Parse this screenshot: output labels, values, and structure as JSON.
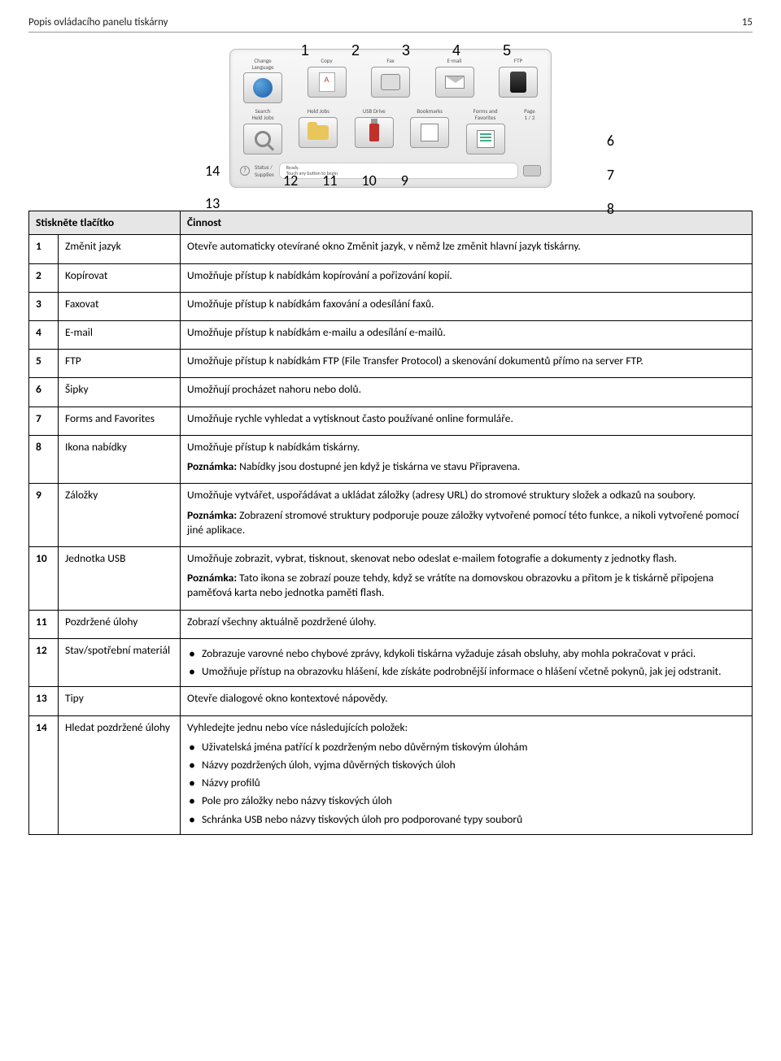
{
  "header": {
    "title": "Popis ovládacího panelu tiskárny",
    "page": "15"
  },
  "callouts": {
    "top": [
      "1",
      "2",
      "3",
      "4",
      "5"
    ],
    "right": [
      "6",
      "7",
      "8"
    ],
    "left": [
      "14",
      "13"
    ],
    "bottom": [
      "12",
      "11",
      "10",
      "9"
    ]
  },
  "panel": {
    "row1": [
      {
        "label": "Change\nLanguage"
      },
      {
        "label": "Copy"
      },
      {
        "label": "Fax"
      },
      {
        "label": "E-mail"
      },
      {
        "label": "FTP"
      }
    ],
    "row2": [
      {
        "label": "Search\nHeld Jobs"
      },
      {
        "label": "Held Jobs"
      },
      {
        "label": "USB Drive"
      },
      {
        "label": "Bookmarks"
      },
      {
        "label": "Forms and\nFavorites"
      }
    ],
    "page_indicator": "Page\n1 / 2",
    "status_label": "Status /\nSupplies",
    "status_msg": "Ready.\nTouch any button to begin"
  },
  "table": {
    "header": [
      "Stiskněte tlačítko",
      "Činnost"
    ],
    "rows": [
      {
        "n": "1",
        "name": "Změnit jazyk",
        "desc": [
          {
            "t": "text",
            "v": "Otevře automaticky otevírané okno Změnit jazyk, v němž lze změnit hlavní jazyk tiskárny."
          }
        ]
      },
      {
        "n": "2",
        "name": "Kopírovat",
        "desc": [
          {
            "t": "text",
            "v": "Umožňuje přístup k nabídkám kopírování a pořizování kopií."
          }
        ]
      },
      {
        "n": "3",
        "name": "Faxovat",
        "desc": [
          {
            "t": "text",
            "v": "Umožňuje přístup k nabídkám faxování a odesílání faxů."
          }
        ]
      },
      {
        "n": "4",
        "name": "E-mail",
        "desc": [
          {
            "t": "text",
            "v": "Umožňuje přístup k nabídkám e-mailu a odesílání e-mailů."
          }
        ]
      },
      {
        "n": "5",
        "name": "FTP",
        "desc": [
          {
            "t": "text",
            "v": "Umožňuje přístup k nabídkám FTP (File Transfer Protocol) a skenování dokumentů přímo na server FTP."
          }
        ]
      },
      {
        "n": "6",
        "name": "Šipky",
        "desc": [
          {
            "t": "text",
            "v": "Umožňují procházet nahoru nebo dolů."
          }
        ]
      },
      {
        "n": "7",
        "name": "Forms and Favorites",
        "desc": [
          {
            "t": "text",
            "v": "Umožňuje rychle vyhledat a vytisknout často používané online formuláře."
          }
        ]
      },
      {
        "n": "8",
        "name": "Ikona nabídky",
        "desc": [
          {
            "t": "text",
            "v": "Umožňuje přístup k nabídkám tiskárny."
          },
          {
            "t": "note",
            "b": "Poznámka:",
            "v": " Nabídky jsou dostupné jen když je tiskárna ve stavu Připravena."
          }
        ]
      },
      {
        "n": "9",
        "name": "Záložky",
        "desc": [
          {
            "t": "text",
            "v": "Umožňuje vytvářet, uspořádávat a ukládat záložky (adresy URL) do stromové struktury složek a odkazů na soubory."
          },
          {
            "t": "note",
            "b": "Poznámka:",
            "v": " Zobrazení stromové struktury podporuje pouze záložky vytvořené pomocí této funkce, a nikoli vytvořené pomocí jiné aplikace."
          }
        ]
      },
      {
        "n": "10",
        "name": "Jednotka USB",
        "desc": [
          {
            "t": "text",
            "v": "Umožňuje zobrazit, vybrat, tisknout, skenovat nebo odeslat e-mailem fotografie a dokumenty z jednotky flash."
          },
          {
            "t": "note",
            "b": "Poznámka:",
            "v": " Tato ikona se zobrazí pouze tehdy, když se vrátíte na domovskou obrazovku a přitom je k tiskárně připojena paměťová karta nebo jednotka paměti flash."
          }
        ]
      },
      {
        "n": "11",
        "name": "Pozdržené úlohy",
        "desc": [
          {
            "t": "text",
            "v": "Zobrazí všechny aktuálně pozdržené úlohy."
          }
        ]
      },
      {
        "n": "12",
        "name": "Stav/spotřební materiál",
        "desc": [
          {
            "t": "list",
            "items": [
              "Zobrazuje varovné nebo chybové zprávy, kdykoli tiskárna vyžaduje zásah obsluhy, aby mohla pokračovat v práci.",
              "Umožňuje přístup na obrazovku hlášení, kde získáte podrobnější informace o hlášení včetně pokynů, jak jej odstranit."
            ]
          }
        ]
      },
      {
        "n": "13",
        "name": "Tipy",
        "desc": [
          {
            "t": "text",
            "v": "Otevře dialogové okno kontextové nápovědy."
          }
        ]
      },
      {
        "n": "14",
        "name": "Hledat pozdržené úlohy",
        "desc": [
          {
            "t": "text",
            "v": "Vyhledejte jednu nebo více následujících položek:"
          },
          {
            "t": "list",
            "items": [
              "Uživatelská jména patřící k pozdrženým nebo důvěrným tiskovým úlohám",
              "Názvy pozdržených úloh, vyjma důvěrných tiskových úloh",
              "Názvy profilů",
              "Pole pro záložky nebo názvy tiskových úloh",
              "Schránka USB nebo názvy tiskových úloh pro podporované typy souborů"
            ]
          }
        ]
      }
    ]
  }
}
